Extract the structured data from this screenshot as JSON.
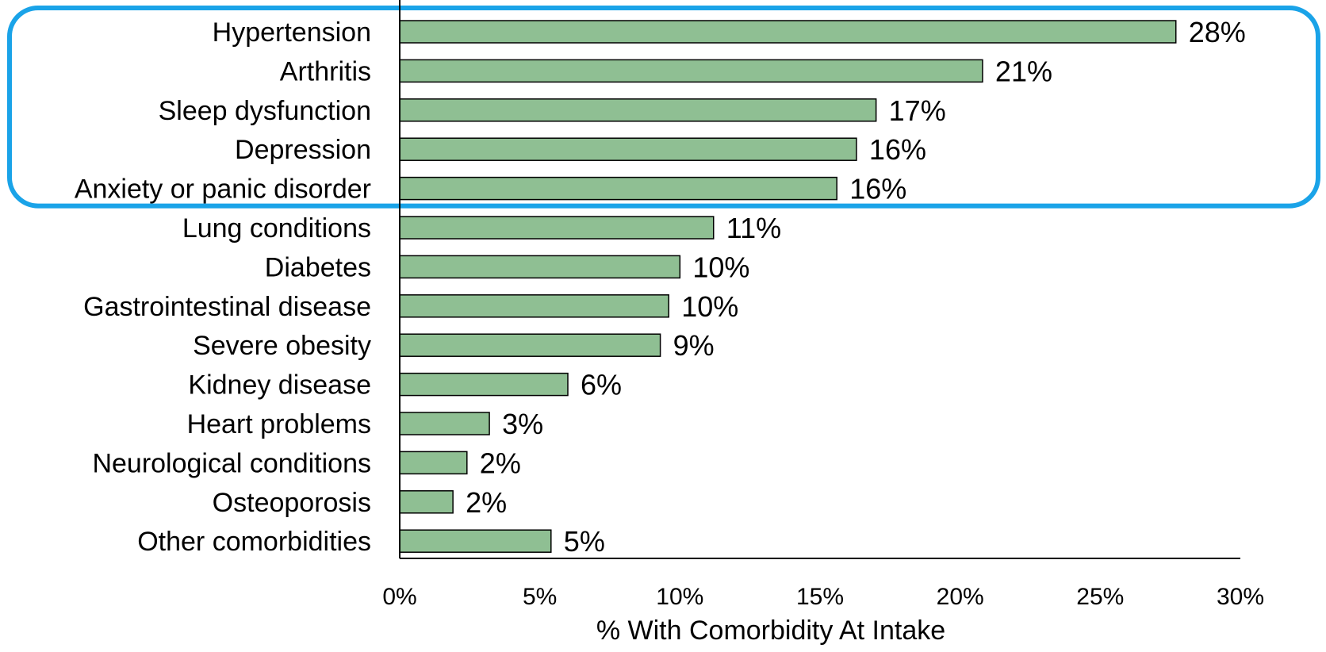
{
  "chart_data": {
    "type": "bar",
    "orientation": "horizontal",
    "categories": [
      "Hypertension",
      "Arthritis",
      "Sleep dysfunction",
      "Depression",
      "Anxiety or panic disorder",
      "Lung conditions",
      "Diabetes",
      "Gastrointestinal disease",
      "Severe obesity",
      "Kidney disease",
      "Heart problems",
      "Neurological conditions",
      "Osteoporosis",
      "Other comorbidities"
    ],
    "values": [
      27.7,
      20.8,
      17.0,
      16.3,
      15.6,
      11.2,
      10.0,
      9.6,
      9.3,
      6.0,
      3.2,
      2.4,
      1.9,
      5.4
    ],
    "value_labels": [
      "28%",
      "21%",
      "17%",
      "16%",
      "16%",
      "11%",
      "10%",
      "10%",
      "9%",
      "6%",
      "3%",
      "2%",
      "2%",
      "5%"
    ],
    "xlabel": "% With Comorbidity At Intake",
    "ylabel": "",
    "xlim": [
      0,
      30
    ],
    "x_ticks": [
      0,
      5,
      10,
      15,
      20,
      25,
      30
    ],
    "x_tick_labels": [
      "0%",
      "5%",
      "10%",
      "15%",
      "20%",
      "25%",
      "30%"
    ],
    "grid": false,
    "legend": "none",
    "bar_color": "#8fbf93",
    "bar_edge_color": "#000000",
    "highlight": {
      "categories": [
        "Hypertension",
        "Arthritis",
        "Sleep dysfunction",
        "Depression",
        "Anxiety or panic disorder"
      ],
      "color": "#1aa3e8"
    }
  }
}
